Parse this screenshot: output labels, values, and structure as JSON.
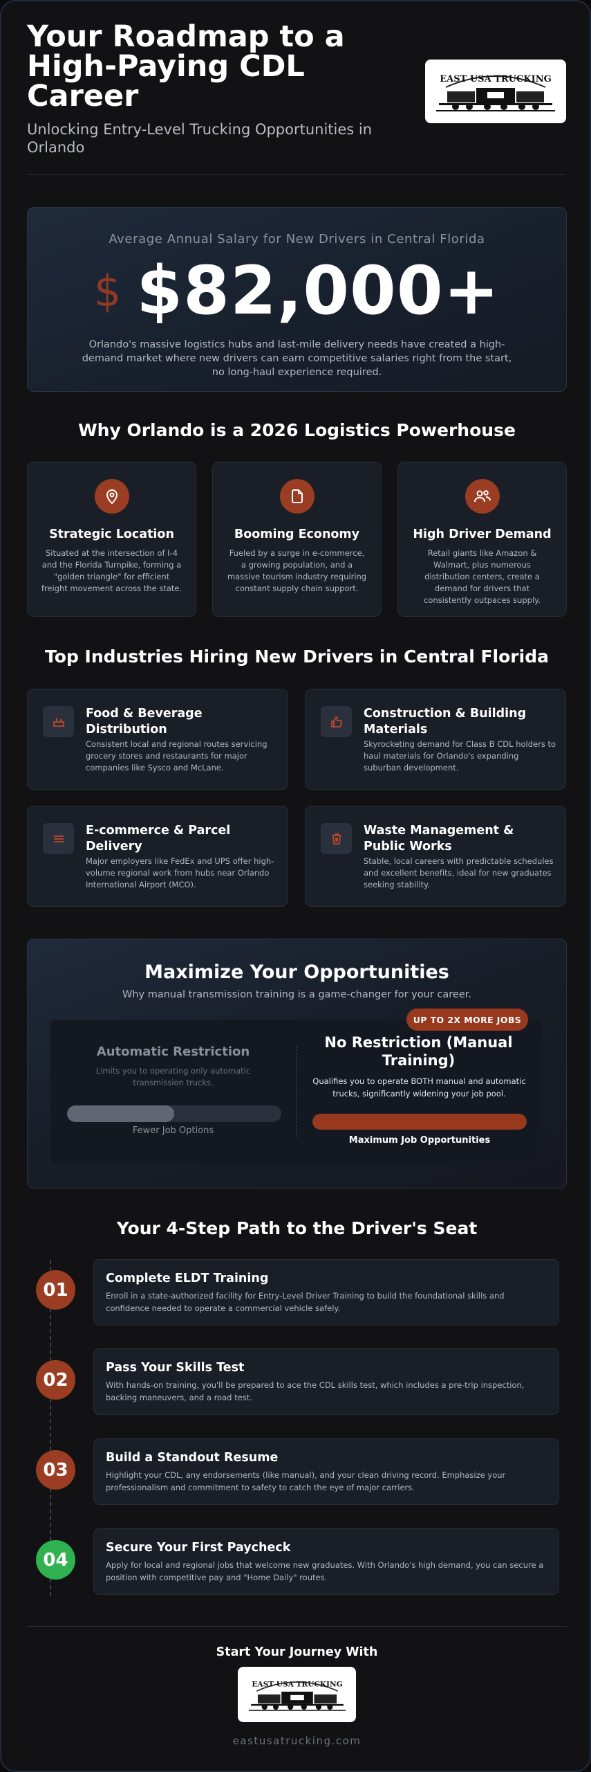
{
  "header": {
    "title": "Your Roadmap to a High-Paying CDL Career",
    "subtitle": "Unlocking Entry-Level Trucking Opportunities in Orlando",
    "logo_text": "EAST USA TRUCKING"
  },
  "salary": {
    "label": "Average Annual Salary for New Drivers in Central Florida",
    "symbol": "$",
    "amount": "$82,000+",
    "description": "Orlando's massive logistics hubs and last-mile delivery needs have created a high-demand market where new drivers can earn competitive salaries right from the start, no long-haul experience required."
  },
  "why": {
    "heading": "Why Orlando is a 2026 Logistics Powerhouse",
    "cards": [
      {
        "icon": "map-pin-icon",
        "title": "Strategic Location",
        "text": "Situated at the intersection of I-4 and the Florida Turnpike, forming a \"golden triangle\" for efficient freight movement across the state."
      },
      {
        "icon": "document-icon",
        "title": "Booming Economy",
        "text": "Fueled by a surge in e-commerce, a growing population, and a massive tourism industry requiring constant supply chain support."
      },
      {
        "icon": "users-icon",
        "title": "High Driver Demand",
        "text": "Retail giants like Amazon & Walmart, plus numerous distribution centers, create a demand for drivers that consistently outpaces supply."
      }
    ]
  },
  "industries": {
    "heading": "Top Industries Hiring New Drivers in Central Florida",
    "items": [
      {
        "icon": "food-cart-icon",
        "title": "Food & Beverage Distribution",
        "text": "Consistent local and regional routes servicing grocery stores and restaurants for major companies like Sysco and McLane."
      },
      {
        "icon": "thumbs-up-icon",
        "title": "Construction & Building Materials",
        "text": "Skyrocketing demand for Class B CDL holders to haul materials for Orlando's expanding suburban development."
      },
      {
        "icon": "list-icon",
        "title": "E-commerce & Parcel Delivery",
        "text": "Major employers like FedEx and UPS offer high-volume regional work from hubs near Orlando International Airport (MCO)."
      },
      {
        "icon": "trash-icon",
        "title": "Waste Management & Public Works",
        "text": "Stable, local careers with predictable schedules and excellent benefits, ideal for new graduates seeking stability."
      }
    ]
  },
  "opportunities": {
    "heading": "Maximize Your Opportunities",
    "subheading": "Why manual transmission training is a game-changer for your career.",
    "badge": "UP TO 2X MORE JOBS",
    "left": {
      "title": "Automatic Restriction",
      "text": "Limits you to operating only automatic transmission trucks.",
      "caption": "Fewer Job Options",
      "level": 0.5
    },
    "right": {
      "title": "No Restriction (Manual Training)",
      "text": "Qualifies you to operate BOTH manual and automatic trucks, significantly widening your job pool.",
      "caption": "Maximum Job Opportunities",
      "level": 1.0
    },
    "colors": {
      "accent": "#98391e",
      "muted_bar": "#5f6674"
    }
  },
  "steps": {
    "heading": "Your 4-Step Path to the Driver's Seat",
    "items": [
      {
        "num": "01",
        "title": "Complete ELDT Training",
        "text": "Enroll in a state-authorized facility for Entry-Level Driver Training to build the foundational skills and confidence needed to operate a commercial vehicle safely.",
        "color": "#9b3d22"
      },
      {
        "num": "02",
        "title": "Pass Your Skills Test",
        "text": "With hands-on training, you'll be prepared to ace the CDL skills test, which includes a pre-trip inspection, backing maneuvers, and a road test.",
        "color": "#9b3d22"
      },
      {
        "num": "03",
        "title": "Build a Standout Resume",
        "text": "Highlight your CDL, any endorsements (like manual), and your clean driving record. Emphasize your professionalism and commitment to safety to catch the eye of major carriers.",
        "color": "#9b3d22"
      },
      {
        "num": "04",
        "title": "Secure Your First Paycheck",
        "text": "Apply for local and regional jobs that welcome new graduates. With Orlando's high demand, you can secure a position with competitive pay and \"Home Daily\" routes.",
        "color": "#2fb24f"
      }
    ]
  },
  "footer": {
    "heading": "Start Your Journey With",
    "logo_text": "EAST USA TRUCKING",
    "url": "eastusatrucking.com"
  }
}
